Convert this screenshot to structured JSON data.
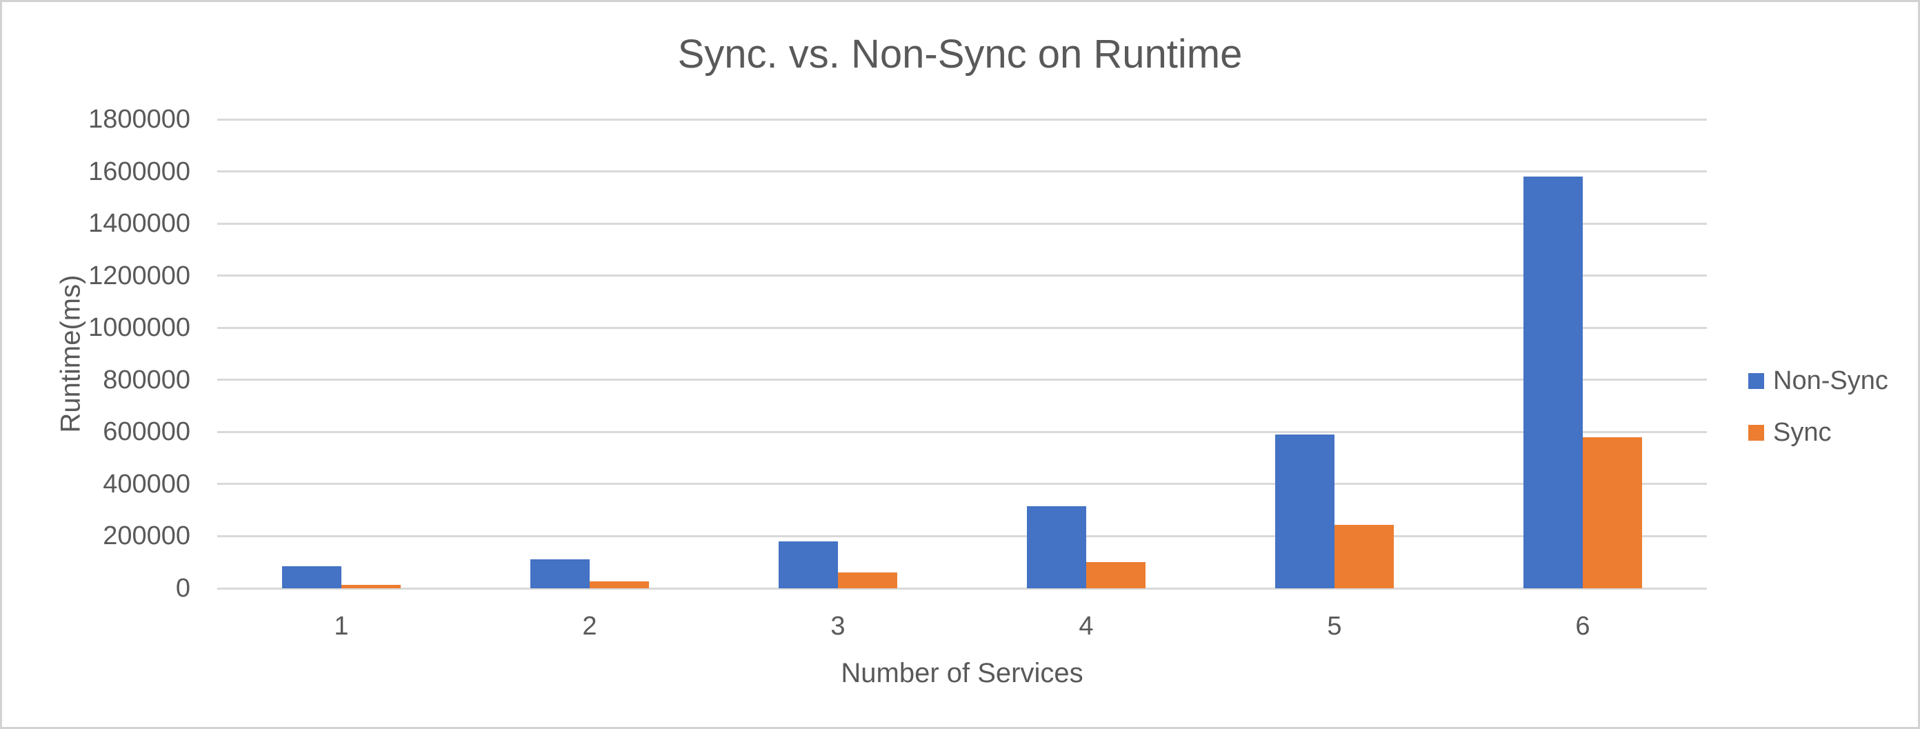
{
  "chart_data": {
    "type": "bar",
    "title": "Sync. vs. Non-Sync on Runtime",
    "xlabel": "Number of Services",
    "ylabel": "Runtime(ms)",
    "categories": [
      "1",
      "2",
      "3",
      "4",
      "5",
      "6"
    ],
    "series": [
      {
        "name": "Non-Sync",
        "color": "#4472C4",
        "values": [
          85000,
          110000,
          180000,
          315000,
          590000,
          1580000
        ]
      },
      {
        "name": "Sync",
        "color": "#ED7D31",
        "values": [
          12000,
          27000,
          62000,
          100000,
          243000,
          580000
        ]
      }
    ],
    "ylim": [
      0,
      1800000
    ],
    "yticks": [
      0,
      200000,
      400000,
      600000,
      800000,
      1000000,
      1200000,
      1400000,
      1600000,
      1800000
    ],
    "grid": true,
    "legend_position": "right",
    "colors": {
      "text": "#595959",
      "gridline": "#D9D9D9",
      "frame_border": "#D2D2D2",
      "background": "#FFFFFF"
    }
  }
}
